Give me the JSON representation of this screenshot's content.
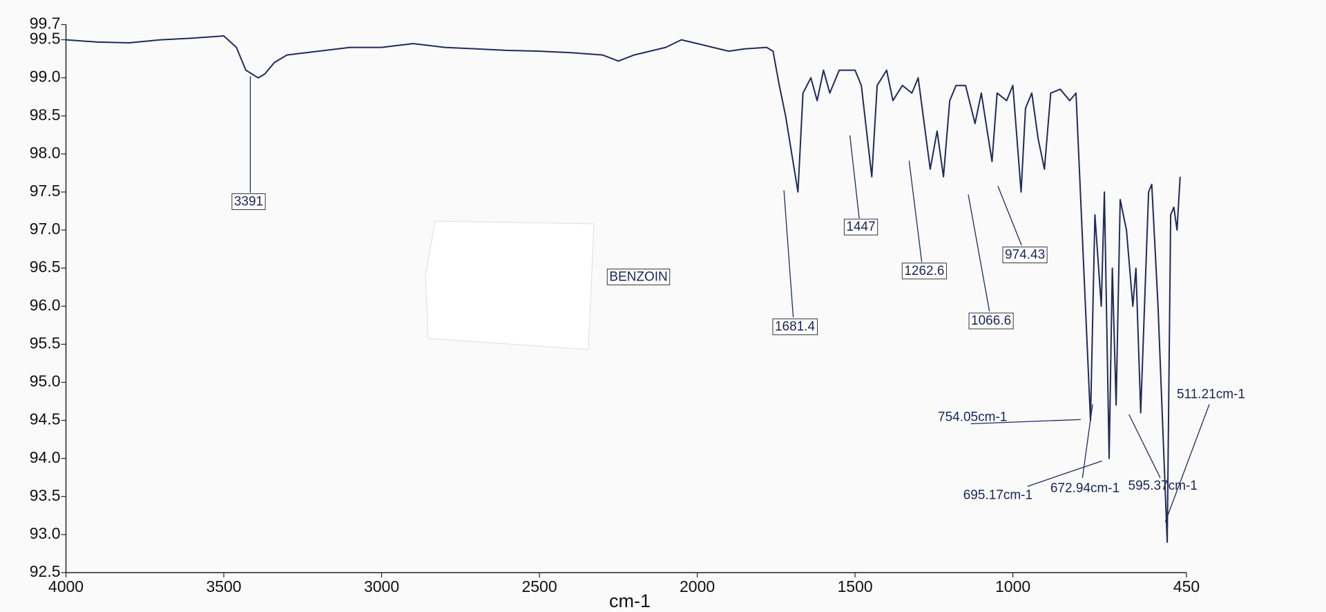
{
  "chart_data": {
    "type": "line",
    "color": "#1f2a5c",
    "x_label": "cm-1",
    "xlim": [
      4000,
      450
    ],
    "xticks": [
      4000,
      3500,
      3000,
      2500,
      2000,
      1500,
      1000,
      450
    ],
    "ylim": [
      92.5,
      99.7
    ],
    "yticks": [
      92.5,
      {
        "value": 93,
        "label": "93.0"
      },
      93.5,
      {
        "value": 94,
        "label": "94.0"
      },
      94.5,
      {
        "value": 95,
        "label": "95.0"
      },
      95.5,
      {
        "value": 96,
        "label": "96.0"
      },
      96.5,
      {
        "value": 97,
        "label": "97.0"
      },
      97.5,
      {
        "value": 98,
        "label": "98.0"
      },
      98.5,
      {
        "value": 99,
        "label": "99.0"
      },
      99.5,
      99.7
    ],
    "annotations": [
      "3391",
      "1447",
      "1262.6",
      "974.43",
      "1681.4",
      "1066.6",
      "BENZOIN",
      "754.05cm-1",
      "695.17cm-1",
      "672.94cm-1",
      "595.37cm-1",
      "511.21cm-1"
    ],
    "x": [
      4000,
      3900,
      3800,
      3700,
      3600,
      3500,
      3460,
      3430,
      3391,
      3370,
      3340,
      3300,
      3200,
      3100,
      3000,
      2900,
      2800,
      2700,
      2600,
      2500,
      2400,
      2300,
      2250,
      2200,
      2100,
      2050,
      2000,
      1950,
      1900,
      1850,
      1780,
      1760,
      1740,
      1720,
      1681,
      1665,
      1640,
      1620,
      1600,
      1580,
      1550,
      1500,
      1480,
      1447,
      1430,
      1400,
      1380,
      1350,
      1320,
      1300,
      1262,
      1240,
      1220,
      1200,
      1180,
      1150,
      1120,
      1100,
      1066,
      1050,
      1020,
      1000,
      974,
      960,
      940,
      920,
      900,
      880,
      850,
      820,
      800,
      754,
      740,
      720,
      710,
      695,
      685,
      673,
      660,
      640,
      620,
      610,
      595,
      570,
      560,
      540,
      511,
      500,
      490,
      480,
      470
    ],
    "values": [
      99.5,
      99.47,
      99.46,
      99.5,
      99.52,
      99.55,
      99.4,
      99.1,
      99.0,
      99.05,
      99.2,
      99.3,
      99.35,
      99.4,
      99.4,
      99.45,
      99.4,
      99.38,
      99.36,
      99.35,
      99.33,
      99.3,
      99.22,
      99.3,
      99.4,
      99.5,
      99.45,
      99.4,
      99.35,
      99.38,
      99.4,
      99.35,
      98.9,
      98.5,
      97.5,
      98.8,
      99.0,
      98.7,
      99.1,
      98.8,
      99.1,
      99.1,
      98.9,
      97.7,
      98.9,
      99.1,
      98.7,
      98.9,
      98.8,
      99.0,
      97.8,
      98.3,
      97.7,
      98.7,
      98.9,
      98.9,
      98.4,
      98.8,
      97.9,
      98.8,
      98.7,
      98.9,
      97.5,
      98.6,
      98.8,
      98.2,
      97.8,
      98.8,
      98.85,
      98.7,
      98.8,
      94.5,
      97.2,
      96.0,
      97.5,
      94.0,
      96.5,
      94.7,
      97.4,
      97.0,
      96.0,
      96.5,
      94.6,
      97.5,
      97.6,
      96.0,
      92.9,
      97.2,
      97.3,
      97.0,
      97.7
    ]
  }
}
